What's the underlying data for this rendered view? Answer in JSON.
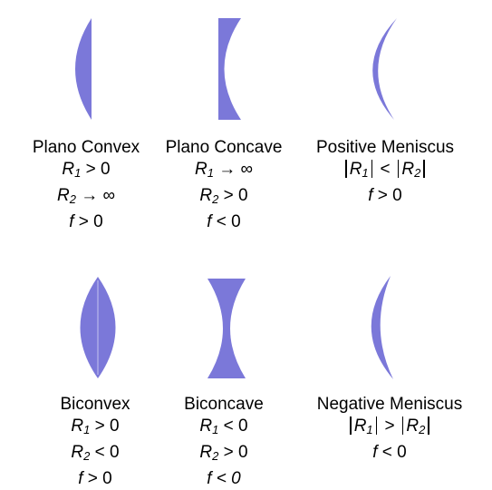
{
  "lens_color": "#7B78D9",
  "lenses": [
    {
      "name": "Plano Convex",
      "r1": {
        "sym": "R",
        "sub": "1",
        "rel": "> 0"
      },
      "r2": {
        "sym": "R",
        "sub": "2",
        "rel": "→ ∞"
      },
      "f": {
        "sym": "f",
        "rel": "> 0"
      }
    },
    {
      "name": "Plano Concave",
      "r1": {
        "sym": "R",
        "sub": "1",
        "rel": "→ ∞"
      },
      "r2": {
        "sym": "R",
        "sub": "2",
        "rel": "> 0"
      },
      "f": {
        "sym": "f",
        "rel": "< 0"
      }
    },
    {
      "name": "Positive Meniscus",
      "cmp": {
        "a_sym": "R",
        "a_sub": "1",
        "op": "<",
        "b_sym": "R",
        "b_sub": "2"
      },
      "f": {
        "sym": "f",
        "rel": "> 0"
      }
    },
    {
      "name": "Biconvex",
      "r1": {
        "sym": "R",
        "sub": "1",
        "rel": "> 0"
      },
      "r2": {
        "sym": "R",
        "sub": "2",
        "rel": "< 0"
      },
      "f": {
        "sym": "f",
        "rel": "> 0"
      }
    },
    {
      "name": "Biconcave",
      "r1": {
        "sym": "R",
        "sub": "1",
        "rel": "< 0"
      },
      "r2": {
        "sym": "R",
        "sub": "2",
        "rel": "> 0"
      },
      "f": {
        "sym": "f",
        "rel": "< 0"
      }
    },
    {
      "name": "Negative Meniscus",
      "cmp": {
        "a_sym": "R",
        "a_sub": "1",
        "op": ">",
        "b_sym": "R",
        "b_sub": "2"
      },
      "f": {
        "sym": "f",
        "rel": "< 0"
      }
    }
  ]
}
